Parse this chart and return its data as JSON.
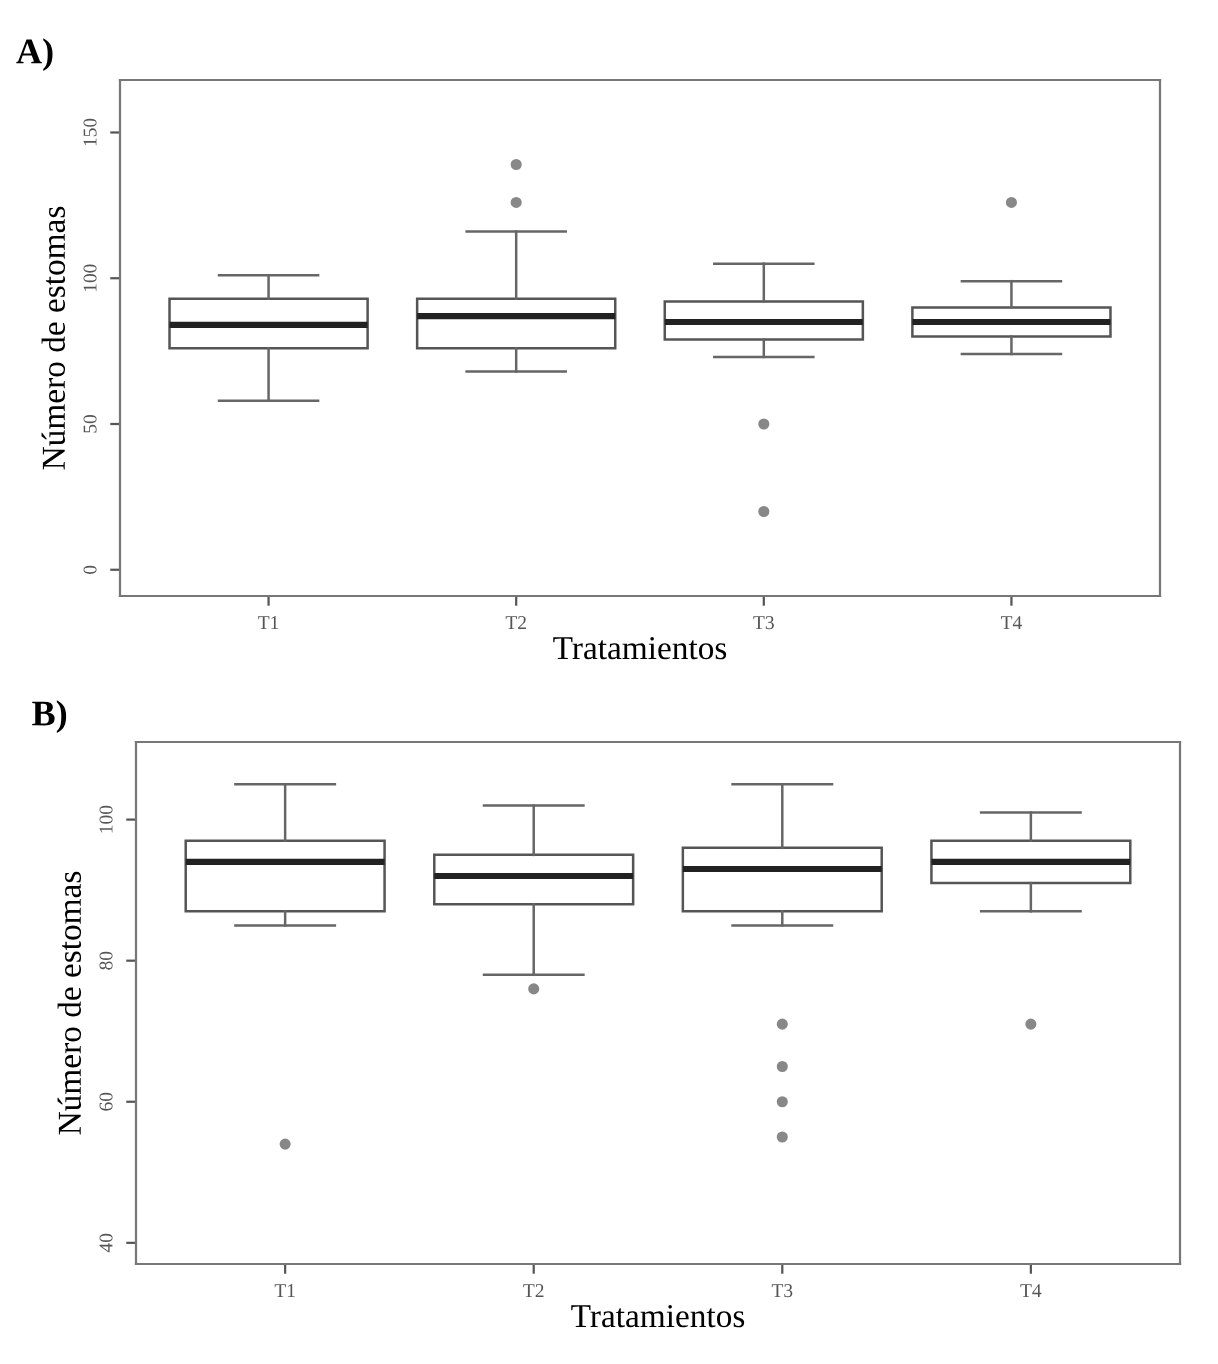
{
  "chart_data": [
    {
      "type": "box",
      "title": "A)",
      "xlabel": "Tratamientos",
      "ylabel": "Número de estomas",
      "categories": [
        "T1",
        "T2",
        "T3",
        "T4"
      ],
      "ylim": [
        -9,
        168
      ],
      "yticks": [
        0,
        50,
        100,
        150
      ],
      "grid": false,
      "legend": false,
      "boxes": [
        {
          "low": 58,
          "q1": 76,
          "median": 84,
          "q3": 93,
          "high": 101
        },
        {
          "low": 68,
          "q1": 76,
          "median": 87,
          "q3": 93,
          "high": 116,
          "outliers": [
            126,
            139
          ]
        },
        {
          "low": 73,
          "q1": 79,
          "median": 85,
          "q3": 92,
          "high": 105,
          "outliers": [
            50,
            20
          ]
        },
        {
          "low": 74,
          "q1": 80,
          "median": 85,
          "q3": 90,
          "high": 99,
          "outliers": [
            126
          ]
        }
      ]
    },
    {
      "type": "box",
      "title": "B)",
      "xlabel": "Tratamientos",
      "ylabel": "Número de estomas",
      "categories": [
        "T1",
        "T2",
        "T3",
        "T4"
      ],
      "ylim": [
        37,
        111
      ],
      "yticks": [
        40,
        60,
        80,
        100
      ],
      "grid": false,
      "legend": false,
      "boxes": [
        {
          "low": 85,
          "q1": 87,
          "median": 94,
          "q3": 97,
          "high": 105,
          "outliers": [
            54
          ]
        },
        {
          "low": 78,
          "q1": 88,
          "median": 92,
          "q3": 95,
          "high": 102,
          "outliers": [
            76
          ]
        },
        {
          "low": 85,
          "q1": 87,
          "median": 93,
          "q3": 96,
          "high": 105,
          "outliers": [
            71,
            65,
            60,
            55
          ]
        },
        {
          "low": 87,
          "q1": 91,
          "median": 94,
          "q3": 97,
          "high": 101,
          "outliers": [
            71
          ]
        }
      ]
    }
  ]
}
